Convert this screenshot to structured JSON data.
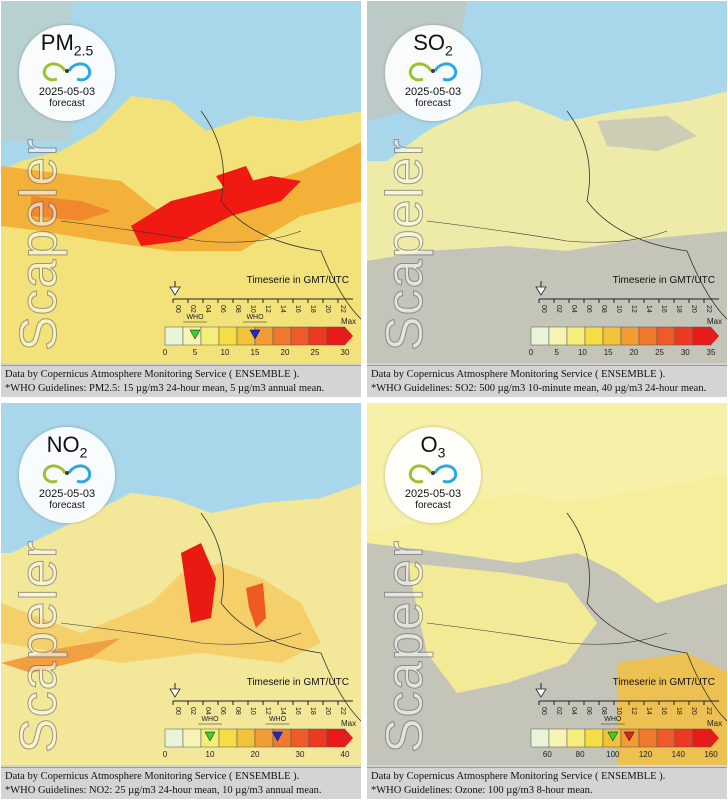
{
  "panels": [
    {
      "id": "pm25",
      "pollutant_main": "PM",
      "pollutant_sub": "2.5",
      "date": "2025-05-03",
      "forecast_label": "forecast",
      "watermark": "Scapeler",
      "timeserie_label": "Timeserie in GMT/UTC",
      "hours": [
        "00",
        "02",
        "04",
        "06",
        "08",
        "10",
        "12",
        "14",
        "16",
        "18",
        "20",
        "22"
      ],
      "scale_ticks": [
        "0",
        "5",
        "10",
        "15",
        "20",
        "25",
        "30"
      ],
      "max_label": "Max",
      "who_labels": [
        "WHO",
        "WHO"
      ],
      "who_marker_values": [
        5,
        15
      ],
      "scale_range": [
        0,
        30
      ],
      "footer_line1": "Data by Copernicus Atmosphere Monitoring Service ( ENSEMBLE ).",
      "footer_line2": "*WHO Guidelines: PM2.5: 15 µg/m3 24-hour mean, 5 µg/m3 annual mean.",
      "colors": {
        "sea": "#a8d6ea",
        "land": "#f5e87a",
        "hot": "#f11a12",
        "mid": "#f3a43a"
      }
    },
    {
      "id": "so2",
      "pollutant_main": "SO",
      "pollutant_sub": "2",
      "date": "2025-05-03",
      "forecast_label": "forecast",
      "watermark": "Scapeler",
      "timeserie_label": "Timeserie in GMT/UTC",
      "hours": [
        "00",
        "02",
        "04",
        "06",
        "08",
        "10",
        "12",
        "14",
        "16",
        "18",
        "20",
        "22"
      ],
      "scale_ticks": [
        "0",
        "5",
        "10",
        "15",
        "20",
        "25",
        "30",
        "35"
      ],
      "max_label": "Max",
      "who_labels": [],
      "who_marker_values": [],
      "scale_range": [
        0,
        35
      ],
      "footer_line1": "Data by Copernicus Atmosphere Monitoring Service ( ENSEMBLE ).",
      "footer_line2": "*WHO Guidelines: SO2: 500 µg/m3 10-minute mean, 40 µg/m3 24-hour mean.",
      "colors": {
        "sea": "#a8d6ea",
        "land": "#eeeaa8",
        "hot": "#f11a12",
        "mid": "#f3a43a"
      }
    },
    {
      "id": "no2",
      "pollutant_main": "NO",
      "pollutant_sub": "2",
      "date": "2025-05-03",
      "forecast_label": "forecast",
      "watermark": "Scapeler",
      "timeserie_label": "Timeserie in GMT/UTC",
      "hours": [
        "00",
        "02",
        "04",
        "06",
        "08",
        "10",
        "12",
        "14",
        "16",
        "18",
        "20",
        "22"
      ],
      "scale_ticks": [
        "0",
        "10",
        "20",
        "30",
        "40"
      ],
      "max_label": "Max",
      "who_labels": [
        "WHO",
        "WHO"
      ],
      "who_marker_values": [
        10,
        25
      ],
      "scale_range": [
        0,
        40
      ],
      "footer_line1": "Data by Copernicus Atmosphere Monitoring Service ( ENSEMBLE ).",
      "footer_line2": "*WHO Guidelines: NO2: 25 µg/m3 24-hour mean, 10 µg/m3 annual mean.",
      "colors": {
        "sea": "#a8d6ea",
        "land": "#f3e79a",
        "hot": "#e81a12",
        "mid": "#f19a3a"
      }
    },
    {
      "id": "o3",
      "pollutant_main": "O",
      "pollutant_sub": "3",
      "date": "2025-05-03",
      "forecast_label": "forecast",
      "watermark": "Scapeler",
      "timeserie_label": "Timeserie in GMT/UTC",
      "hours": [
        "00",
        "02",
        "04",
        "06",
        "08",
        "10",
        "12",
        "14",
        "16",
        "18",
        "20",
        "22"
      ],
      "scale_ticks": [
        "60",
        "80",
        "100",
        "120",
        "140",
        "160"
      ],
      "max_label": "Max",
      "who_labels": [
        "WHO"
      ],
      "who_marker_values": [
        100
      ],
      "red_marker_value": 110,
      "scale_range": [
        50,
        160
      ],
      "footer_line1": "Data by Copernicus Atmosphere Monitoring Service ( ENSEMBLE ).",
      "footer_line2": "*WHO Guidelines: Ozone: 100 µg/m3 8-hour mean.",
      "colors": {
        "sea": "#a8d6ea",
        "land": "#f5ee9a",
        "hot": "#f11a12",
        "mid": "#f3a43a"
      }
    }
  ],
  "legend_colors": [
    "#e8f3d8",
    "#f7f4b5",
    "#f6ee7a",
    "#f4dd45",
    "#f2c23a",
    "#f19c35",
    "#ef7a2e",
    "#ee5a28",
    "#ec3a22",
    "#ea1a1a"
  ],
  "marker_colors": {
    "green": "#3bd12a",
    "blue": "#1a25d8",
    "red": "#e5201a"
  }
}
